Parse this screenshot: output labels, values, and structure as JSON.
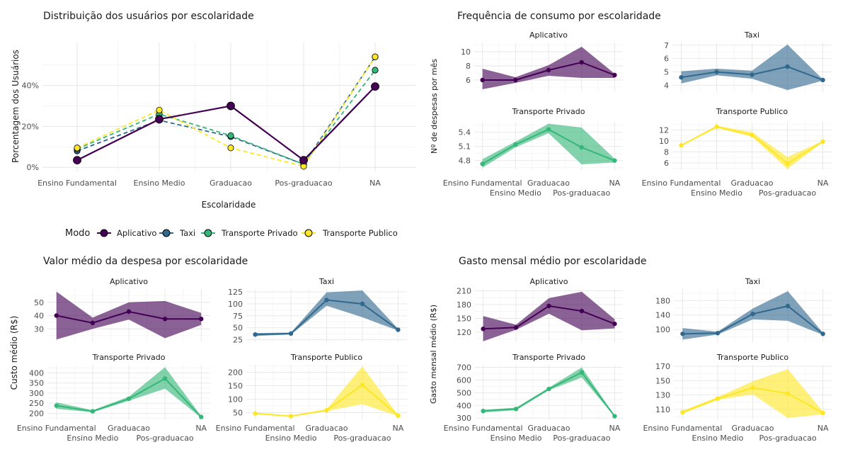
{
  "legend": {
    "title": "Modo",
    "items": [
      {
        "label": "Aplicativo",
        "color": "#440154"
      },
      {
        "label": "Taxi",
        "color": "#31688E"
      },
      {
        "label": "Transporte Privado",
        "color": "#35B779"
      },
      {
        "label": "Transporte Publico",
        "color": "#FDE725"
      }
    ]
  },
  "categories": [
    "Ensino Fundamental",
    "Ensino Medio",
    "Graduacao",
    "Pos-graduacao",
    "NA"
  ],
  "chart_data": [
    {
      "type": "line",
      "title": "Distribuição dos usuários por escolaridade",
      "xlabel": "Escolaridade",
      "ylabel": "Porcentagem dos Usuários",
      "categories": [
        "Ensino Fundamental",
        "Ensino Medio",
        "Graduacao",
        "Pos-graduacao",
        "NA"
      ],
      "ylim": [
        -2,
        61
      ],
      "yticks": [
        0,
        20,
        40
      ],
      "ytick_labels": [
        "0%",
        "20%",
        "40%"
      ],
      "series": [
        {
          "name": "Aplicativo",
          "values": [
            3.5,
            23.5,
            30,
            3.5,
            39.5
          ]
        },
        {
          "name": "Taxi",
          "values": [
            8,
            23,
            15,
            1.5,
            54
          ]
        },
        {
          "name": "Transporte Privado",
          "values": [
            9,
            26,
            15.5,
            1.5,
            47.5
          ]
        },
        {
          "name": "Transporte Publico",
          "values": [
            9.5,
            28,
            9.5,
            0.5,
            54
          ]
        }
      ]
    },
    {
      "type": "area",
      "title": "Frequência de consumo por escolaridade",
      "ylabel": "Nº de despesas por mês",
      "categories": [
        "Ensino Fundamental",
        "Ensino Medio",
        "Graduacao",
        "Pos-graduacao",
        "NA"
      ],
      "panels": [
        {
          "name": "Aplicativo",
          "mean": [
            6,
            6,
            7.4,
            8.5,
            6.7
          ],
          "lower": [
            4.7,
            5.6,
            6.6,
            6.3,
            6.3
          ],
          "upper": [
            7.6,
            6.4,
            8.1,
            10.7,
            6.9
          ],
          "ylim": [
            4.3,
            11.3
          ],
          "yticks": [
            6,
            8,
            10
          ]
        },
        {
          "name": "Taxi",
          "mean": [
            4.6,
            5,
            4.8,
            5.4,
            4.4
          ],
          "lower": [
            4.15,
            4.75,
            4.5,
            3.65,
            4.35
          ],
          "upper": [
            5.05,
            5.25,
            5.1,
            7.05,
            4.45
          ],
          "ylim": [
            3.5,
            7.2
          ],
          "yticks": [
            4,
            5,
            6,
            7
          ]
        },
        {
          "name": "Transporte Privado",
          "mean": [
            4.73,
            5.14,
            5.46,
            5.08,
            4.8
          ],
          "lower": [
            4.65,
            5.08,
            5.38,
            4.72,
            4.76
          ],
          "upper": [
            4.83,
            5.2,
            5.58,
            5.5,
            4.84
          ],
          "ylim": [
            4.6,
            5.62
          ],
          "yticks": [
            4.8,
            5.1,
            5.4
          ],
          "ytick_labels": [
            "4.8",
            "5.1",
            "5.4"
          ]
        },
        {
          "name": "Transporte Publico",
          "mean": [
            9.2,
            12.6,
            11.1,
            5.9,
            9.9
          ],
          "lower": [
            9.1,
            12.4,
            10.8,
            4.9,
            9.8
          ],
          "upper": [
            9.3,
            12.8,
            11.6,
            7.1,
            10
          ],
          "ylim": [
            4.7,
            13.5
          ],
          "yticks": [
            6,
            8,
            10,
            12
          ]
        }
      ]
    },
    {
      "type": "area",
      "title": "Valor médio da despesa por escolaridade",
      "ylabel": "Custo médio (R$)",
      "categories": [
        "Ensino Fundamental",
        "Ensino Medio",
        "Graduacao",
        "Pos-graduacao",
        "NA"
      ],
      "panels": [
        {
          "name": "Aplicativo",
          "mean": [
            40,
            34.5,
            43,
            37.5,
            37.5
          ],
          "lower": [
            22,
            30,
            37,
            23,
            33
          ],
          "upper": [
            58,
            38.5,
            50,
            51,
            42
          ],
          "ylim": [
            20,
            60
          ],
          "yticks": [
            30,
            40,
            50
          ]
        },
        {
          "name": "Taxi",
          "mean": [
            36,
            38,
            108,
            100,
            46
          ],
          "lower": [
            33,
            36,
            96,
            72,
            44
          ],
          "upper": [
            39,
            40,
            124,
            128,
            48
          ],
          "ylim": [
            20,
            131
          ],
          "yticks": [
            25,
            50,
            75,
            100,
            125
          ]
        },
        {
          "name": "Transporte Privado",
          "mean": [
            238,
            210,
            272,
            372,
            182
          ],
          "lower": [
            222,
            205,
            262,
            322,
            178
          ],
          "upper": [
            254,
            215,
            282,
            428,
            186
          ],
          "ylim": [
            170,
            440
          ],
          "yticks": [
            200,
            250,
            300,
            350,
            400
          ]
        },
        {
          "name": "Transporte Publico",
          "mean": [
            47,
            37,
            59,
            153,
            39
          ],
          "lower": [
            45,
            35,
            56,
            82,
            37
          ],
          "upper": [
            49,
            39,
            63,
            222,
            41
          ],
          "ylim": [
            25,
            228
          ],
          "yticks": [
            50,
            100,
            150,
            200
          ]
        }
      ]
    },
    {
      "type": "area",
      "title": "Gasto mensal médio por escolaridade",
      "ylabel": "Gasto mensal médio (R$)",
      "categories": [
        "Ensino Fundamental",
        "Ensino Medio",
        "Graduacao",
        "Pos-graduacao",
        "NA"
      ],
      "panels": [
        {
          "name": "Aplicativo",
          "mean": [
            127,
            130,
            177,
            166,
            138
          ],
          "lower": [
            100,
            125,
            160,
            124,
            128
          ],
          "upper": [
            155,
            136,
            194,
            208,
            148
          ],
          "ylim": [
            98,
            214
          ],
          "yticks": [
            120,
            150,
            180,
            210
          ]
        },
        {
          "name": "Taxi",
          "mean": [
            88,
            90,
            143,
            165,
            88
          ],
          "lower": [
            72,
            86,
            128,
            124,
            85
          ],
          "upper": [
            104,
            94,
            158,
            206,
            91
          ],
          "ylim": [
            65,
            212
          ],
          "yticks": [
            100,
            140,
            180
          ]
        },
        {
          "name": "Transporte Privado",
          "mean": [
            356,
            372,
            530,
            660,
            315
          ],
          "lower": [
            346,
            362,
            520,
            620,
            311
          ],
          "upper": [
            366,
            382,
            540,
            700,
            319
          ],
          "ylim": [
            290,
            720
          ],
          "yticks": [
            300,
            400,
            500,
            600,
            700
          ]
        },
        {
          "name": "Transporte Publico",
          "mean": [
            106,
            125,
            140,
            132,
            105
          ],
          "lower": [
            104,
            123,
            131,
            98,
            103
          ],
          "upper": [
            108,
            127,
            149,
            166,
            107
          ],
          "ylim": [
            96,
            172
          ],
          "yticks": [
            110,
            130,
            150,
            170
          ]
        }
      ]
    }
  ]
}
